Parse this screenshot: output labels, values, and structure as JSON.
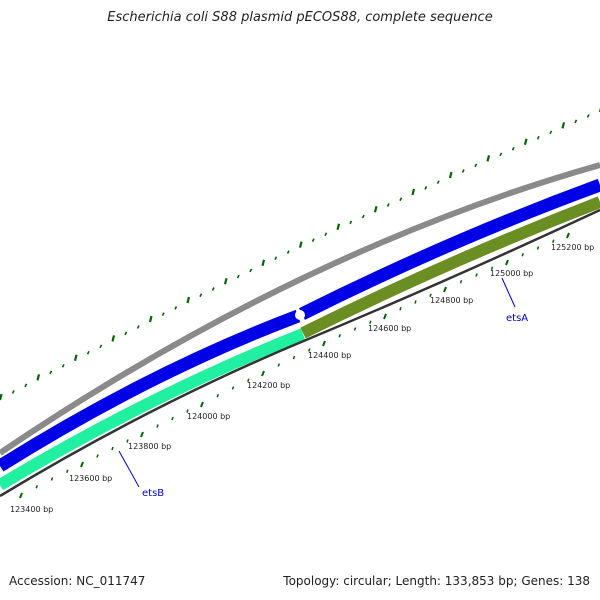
{
  "title": "Escherichia coli S88 plasmid pECOS88, complete sequence",
  "footer": {
    "accession": "Accession: NC_011747",
    "summary": "Topology: circular; Length: 133,853 bp; Genes: 138"
  },
  "colors": {
    "outer_ring": "#8a8a8a",
    "cds_blue": "#0000e6",
    "gene_cyan": "#20f0a0",
    "gene_olive": "#6b8e23",
    "tick": "#006400",
    "gene_label": "#0000c8"
  },
  "position_ticks": [
    "123400 bp",
    "123600 bp",
    "123800 bp",
    "124000 bp",
    "124200 bp",
    "124400 bp",
    "124600 bp",
    "124800 bp",
    "125000 bp",
    "125200 bp"
  ],
  "genes": [
    {
      "name": "etsB"
    },
    {
      "name": "etsA"
    }
  ]
}
